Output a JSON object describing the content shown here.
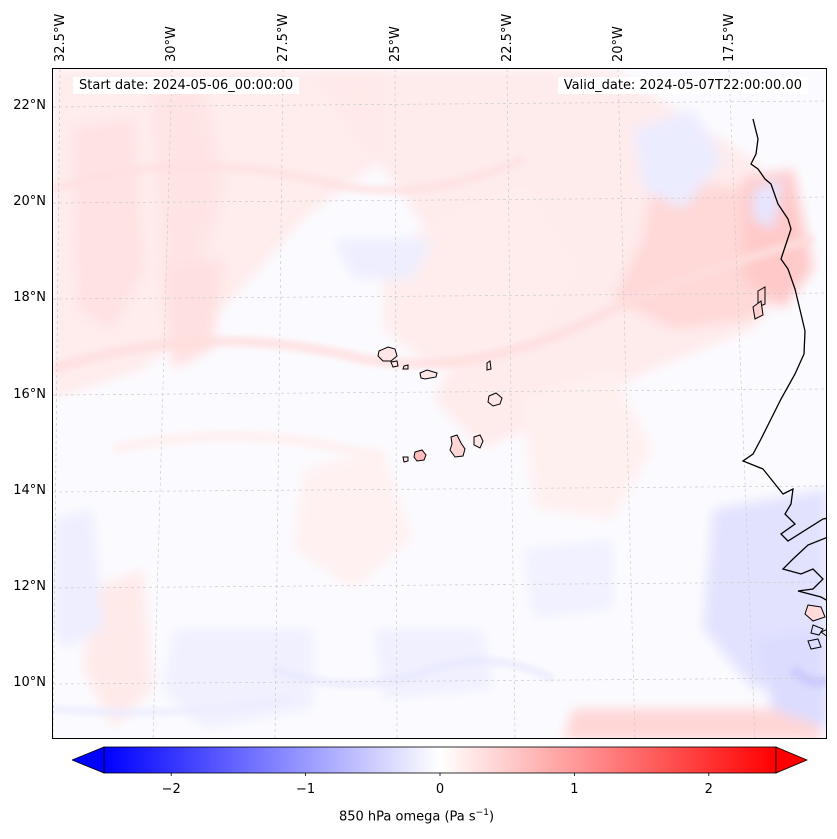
{
  "map": {
    "title_start": "Start date: 2024-05-06_00:00:00",
    "title_valid": "Valid_date: 2024-05-07T22:00:00.00",
    "lon_labels": [
      "32.5°W",
      "30°W",
      "27.5°W",
      "25°W",
      "22.5°W",
      "20°W",
      "17.5°W"
    ],
    "lat_labels": [
      "22°N",
      "20°N",
      "18°N",
      "16°N",
      "14°N",
      "12°N",
      "10°N"
    ],
    "variable": "850 hPa omega",
    "units_label": "(Pa s",
    "units_exp": "−1",
    "units_close": ")"
  },
  "colorbar": {
    "ticks": [
      "−2",
      "−1",
      "0",
      "1",
      "2"
    ],
    "tick_values": [
      -2,
      -1,
      0,
      1,
      2
    ],
    "vmin": -2.5,
    "vmax": 2.5,
    "colormap": "bwr",
    "low_color": "#0000ff",
    "mid_color": "#ffffff",
    "high_color": "#ff0000"
  }
}
